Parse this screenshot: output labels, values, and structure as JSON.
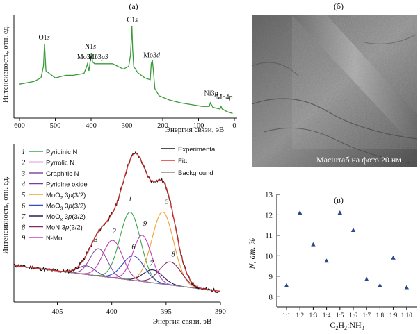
{
  "panel_labels": {
    "a": "(а)",
    "b": "(б)",
    "c": "(в)"
  },
  "photo": {
    "scale_caption": "Масштаб на фото 20 нм"
  },
  "chart_data": [
    {
      "id": "survey",
      "type": "line",
      "ylabel": "Интенсивность, отн. ед.",
      "xlabel": "Энергия связи, эВ",
      "xlim": [
        600,
        0
      ],
      "xticks": [
        600,
        500,
        400,
        300,
        200,
        100,
        0
      ],
      "color": "#3a9a3a",
      "x": [
        600,
        560,
        540,
        533,
        530,
        526,
        500,
        470,
        450,
        420,
        414,
        410,
        406,
        402,
        399,
        396,
        390,
        380,
        360,
        340,
        310,
        295,
        290,
        286,
        284,
        281,
        270,
        250,
        235,
        232,
        229,
        226,
        222,
        210,
        180,
        150,
        120,
        90,
        70,
        67,
        60,
        40,
        37,
        34,
        20,
        5
      ],
      "y": [
        0.35,
        0.38,
        0.42,
        0.55,
        0.8,
        0.5,
        0.42,
        0.45,
        0.45,
        0.47,
        0.53,
        0.58,
        0.5,
        0.62,
        0.7,
        0.6,
        0.58,
        0.58,
        0.58,
        0.58,
        0.52,
        0.55,
        0.68,
        1.0,
        0.75,
        0.55,
        0.48,
        0.42,
        0.4,
        0.58,
        0.62,
        0.5,
        0.3,
        0.22,
        0.17,
        0.14,
        0.12,
        0.1,
        0.1,
        0.14,
        0.09,
        0.07,
        0.1,
        0.07,
        0.04,
        0.02
      ],
      "annotations": [
        {
          "x": 531,
          "y": 0.82,
          "text": "O1s"
        },
        {
          "x": 402,
          "y": 0.72,
          "text": "N1s"
        },
        {
          "x": 411,
          "y": 0.6,
          "text": "Mo3p1"
        },
        {
          "x": 380,
          "y": 0.6,
          "text": "Mo3p3"
        },
        {
          "x": 285,
          "y": 1.02,
          "text": "C1s"
        },
        {
          "x": 231,
          "y": 0.62,
          "text": "Mo3d"
        },
        {
          "x": 65,
          "y": 0.19,
          "text": "Ni3p"
        },
        {
          "x": 28,
          "y": 0.15,
          "text": "Mo4p"
        }
      ]
    },
    {
      "id": "n1s",
      "type": "line",
      "ylabel": "Интенсивность, отн. ед.",
      "xlabel": "Энергия связи, эВ",
      "xlim": [
        409,
        390
      ],
      "xticks": [
        405,
        400,
        395,
        390
      ],
      "ylim": [
        0,
        1.05
      ],
      "legend": [
        {
          "num": "1",
          "label": "Pyridinic N",
          "color": "#3aa84a",
          "center": 398.3,
          "height": 0.47,
          "sigma": 0.95
        },
        {
          "num": "2",
          "label": "Pyrrolic N",
          "color": "#c03aa8",
          "center": 399.9,
          "height": 0.26,
          "sigma": 0.9
        },
        {
          "num": "3",
          "label": "Graphitic N",
          "color": "#8a4aa8",
          "center": 401.2,
          "height": 0.19,
          "sigma": 0.8
        },
        {
          "num": "4",
          "label": "Pyridine oxide",
          "color": "#7a3aa8",
          "center": 402.3,
          "height": 0.06,
          "sigma": 0.8
        },
        {
          "num": "5",
          "label": "MoO2 3p(3/2)",
          "color": "#f0a030",
          "center": 395.3,
          "height": 0.5,
          "sigma": 1.0
        },
        {
          "num": "6",
          "label": "MoO3 3p(3/2)",
          "color": "#3a4ac0",
          "center": 398.0,
          "height": 0.17,
          "sigma": 1.0
        },
        {
          "num": "7",
          "label": "MoOx 3p(3/2)",
          "color": "#22225a",
          "center": 396.2,
          "height": 0.09,
          "sigma": 0.9
        },
        {
          "num": "8",
          "label": "MoN 3p(3/2)",
          "color": "#8a2a5a",
          "center": 394.6,
          "height": 0.16,
          "sigma": 1.0
        },
        {
          "num": "9",
          "label": "N-Mo",
          "color": "#c040c0",
          "center": 397.2,
          "height": 0.32,
          "sigma": 0.85
        }
      ],
      "legend2": [
        {
          "label": "Experimental",
          "color": "#111111"
        },
        {
          "label": "Fitt",
          "color": "#e03030"
        },
        {
          "label": "Background",
          "color": "#8a8a8a"
        }
      ],
      "background": {
        "left": 0.24,
        "right": 0.06
      }
    },
    {
      "id": "ncontent",
      "type": "scatter",
      "ylabel": "N, ат. %",
      "xlabel": "C2H2:NH3",
      "categories": [
        "1:1",
        "1:2",
        "1:3",
        "1:4",
        "1:5",
        "1:6",
        "1:7",
        "1:8",
        "1:9",
        "1:10"
      ],
      "values": [
        8.55,
        12.1,
        10.55,
        9.75,
        12.1,
        11.25,
        8.85,
        8.55,
        9.9,
        8.45
      ],
      "ylim": [
        7.5,
        13
      ],
      "yticks": [
        8,
        9,
        10,
        11,
        12,
        13
      ],
      "color": "#2a4a8a"
    }
  ]
}
